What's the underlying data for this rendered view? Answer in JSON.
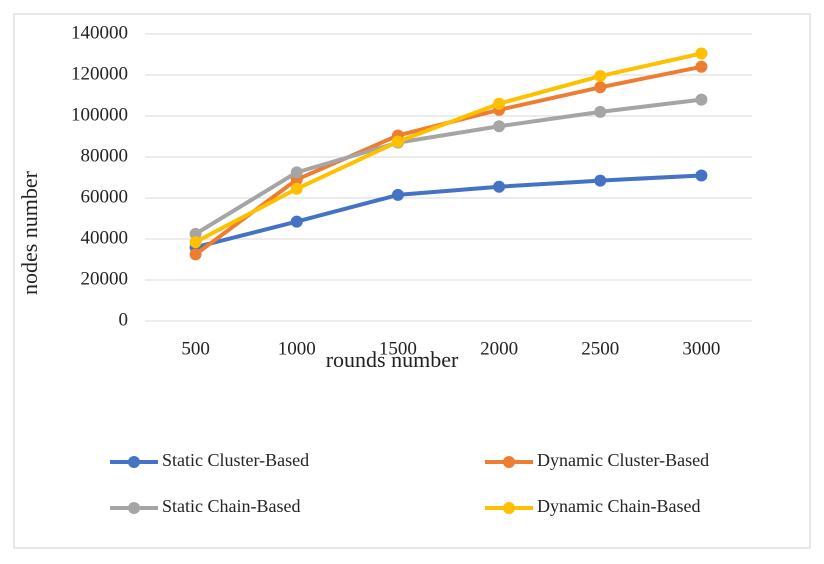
{
  "chart_data": {
    "type": "line",
    "x_label": "rounds number",
    "y_label": "nodes number",
    "categories": [
      "500",
      "1000",
      "1500",
      "2000",
      "2500",
      "3000"
    ],
    "series": [
      {
        "name": "Static Cluster-Based",
        "color": "#4472c4",
        "values": [
          36000,
          48500,
          61500,
          65500,
          68500,
          71000
        ]
      },
      {
        "name": "Dynamic Cluster-Based",
        "color": "#ed7d31",
        "values": [
          32500,
          69000,
          90500,
          103000,
          114000,
          124000
        ]
      },
      {
        "name": "Static Chain-Based",
        "color": "#a5a5a5",
        "values": [
          42500,
          72500,
          87000,
          95000,
          102000,
          108000
        ]
      },
      {
        "name": "Dynamic Chain-Based",
        "color": "#ffc000",
        "values": [
          38500,
          64500,
          87500,
          106000,
          119500,
          130500
        ]
      }
    ],
    "ylim": [
      0,
      140000
    ],
    "yticks": [
      0,
      20000,
      40000,
      60000,
      80000,
      100000,
      120000,
      140000
    ],
    "grid": true,
    "legend": "bottom"
  }
}
